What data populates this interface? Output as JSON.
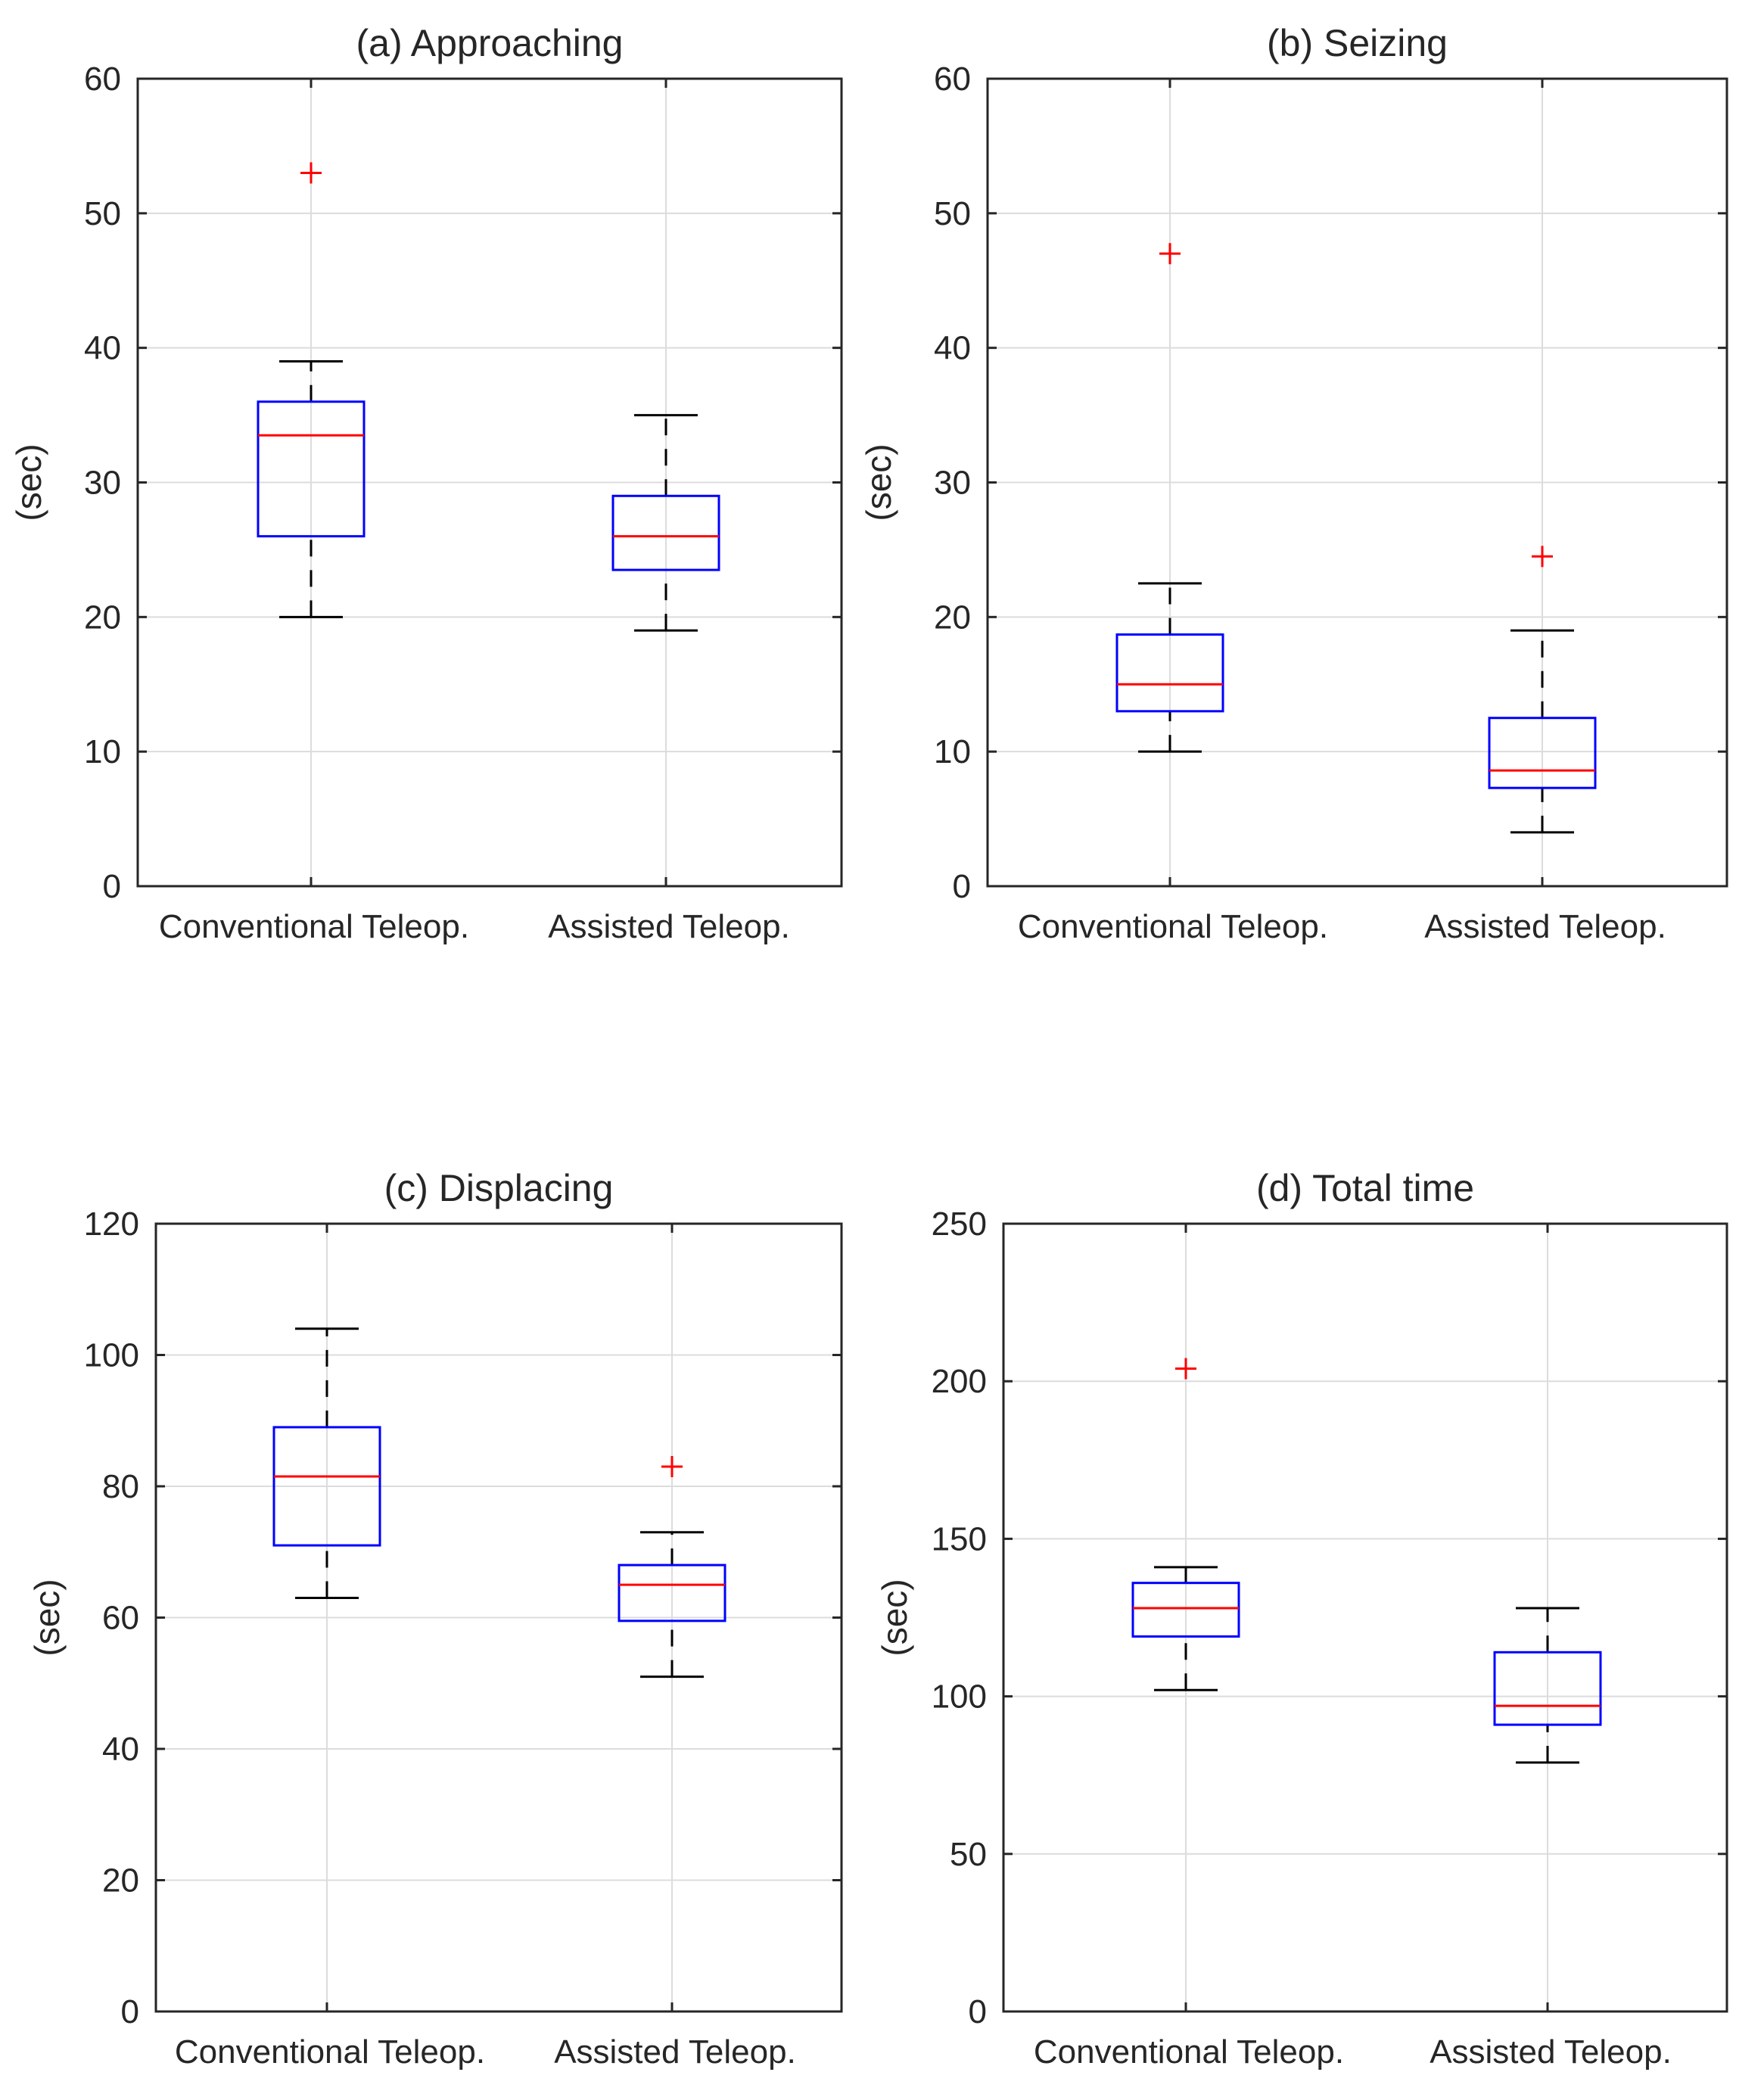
{
  "chart_data": [
    {
      "type": "boxplot",
      "title": "(a) Approaching",
      "ylabel": "(sec)",
      "ylim": [
        0,
        60
      ],
      "yticks": [
        "0",
        "10",
        "20",
        "30",
        "40",
        "50",
        "60"
      ],
      "ytick_values": [
        0,
        10,
        20,
        30,
        40,
        50,
        60
      ],
      "categories": [
        "Conventional Teleop.",
        "Assisted Teleop."
      ],
      "boxes": [
        {
          "whisker_low": 20,
          "q1": 26,
          "median": 33.5,
          "q3": 36,
          "whisker_high": 39,
          "outliers": [
            53
          ]
        },
        {
          "whisker_low": 19,
          "q1": 23.5,
          "median": 26,
          "q3": 29,
          "whisker_high": 35,
          "outliers": []
        }
      ],
      "grid": true
    },
    {
      "type": "boxplot",
      "title": "(b) Seizing",
      "ylabel": "(sec)",
      "ylim": [
        0,
        60
      ],
      "yticks": [
        "0",
        "10",
        "20",
        "30",
        "40",
        "50",
        "60"
      ],
      "ytick_values": [
        0,
        10,
        20,
        30,
        40,
        50,
        60
      ],
      "categories": [
        "Conventional Teleop.",
        "Assisted Teleop."
      ],
      "boxes": [
        {
          "whisker_low": 10,
          "q1": 13,
          "median": 15,
          "q3": 18.7,
          "whisker_high": 22.5,
          "outliers": [
            47
          ]
        },
        {
          "whisker_low": 4,
          "q1": 7.3,
          "median": 8.6,
          "q3": 12.5,
          "whisker_high": 19,
          "outliers": [
            24.5
          ]
        }
      ],
      "grid": true
    },
    {
      "type": "boxplot",
      "title": "(c) Displacing",
      "ylabel": "(sec)",
      "ylim": [
        0,
        120
      ],
      "yticks": [
        "0",
        "20",
        "40",
        "60",
        "80",
        "100",
        "120"
      ],
      "ytick_values": [
        0,
        20,
        40,
        60,
        80,
        100,
        120
      ],
      "categories": [
        "Conventional Teleop.",
        "Assisted Teleop."
      ],
      "boxes": [
        {
          "whisker_low": 63,
          "q1": 71,
          "median": 81.5,
          "q3": 89,
          "whisker_high": 104,
          "outliers": []
        },
        {
          "whisker_low": 51,
          "q1": 59.5,
          "median": 65,
          "q3": 68,
          "whisker_high": 73,
          "outliers": [
            83
          ]
        }
      ],
      "grid": true
    },
    {
      "type": "boxplot",
      "title": "(d) Total time",
      "ylabel": "(sec)",
      "ylim": [
        0,
        250
      ],
      "yticks": [
        "0",
        "50",
        "100",
        "150",
        "200",
        "250"
      ],
      "ytick_values": [
        0,
        50,
        100,
        150,
        200,
        250
      ],
      "categories": [
        "Conventional Teleop.",
        "Assisted Teleop."
      ],
      "boxes": [
        {
          "whisker_low": 102,
          "q1": 119,
          "median": 128,
          "q3": 136,
          "whisker_high": 141,
          "outliers": [
            204
          ]
        },
        {
          "whisker_low": 79,
          "q1": 91,
          "median": 97,
          "q3": 114,
          "whisker_high": 128,
          "outliers": []
        }
      ],
      "grid": true
    }
  ]
}
